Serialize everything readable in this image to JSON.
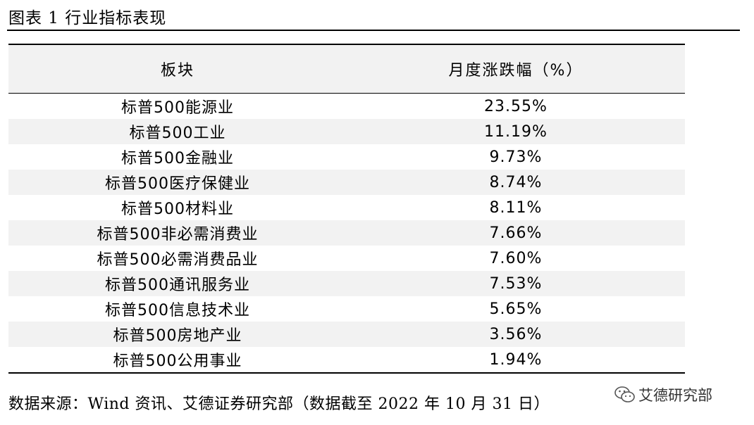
{
  "title": "图表 1 行业指标表现",
  "table": {
    "headers": [
      "板块",
      "月度涨跌幅（%）"
    ],
    "rows": [
      {
        "sector": "标普500能源业",
        "change": "23.55%"
      },
      {
        "sector": "标普500工业",
        "change": "11.19%"
      },
      {
        "sector": "标普500金融业",
        "change": "9.73%"
      },
      {
        "sector": "标普500医疗保健业",
        "change": "8.74%"
      },
      {
        "sector": "标普500材料业",
        "change": "8.11%"
      },
      {
        "sector": "标普500非必需消费业",
        "change": "7.66%"
      },
      {
        "sector": "标普500必需消费品业",
        "change": "7.60%"
      },
      {
        "sector": "标普500通讯服务业",
        "change": "7.53%"
      },
      {
        "sector": "标普500信息技术业",
        "change": "5.65%"
      },
      {
        "sector": "标普500房地产业",
        "change": "3.56%"
      },
      {
        "sector": "标普500公用事业",
        "change": "1.94%"
      }
    ]
  },
  "source": "数据来源：Wind 资讯、艾德证券研究部（数据截至 2022 年 10 月 31 日）",
  "watermark": {
    "text": "艾德研究部",
    "icon": "wechat-icon"
  }
}
